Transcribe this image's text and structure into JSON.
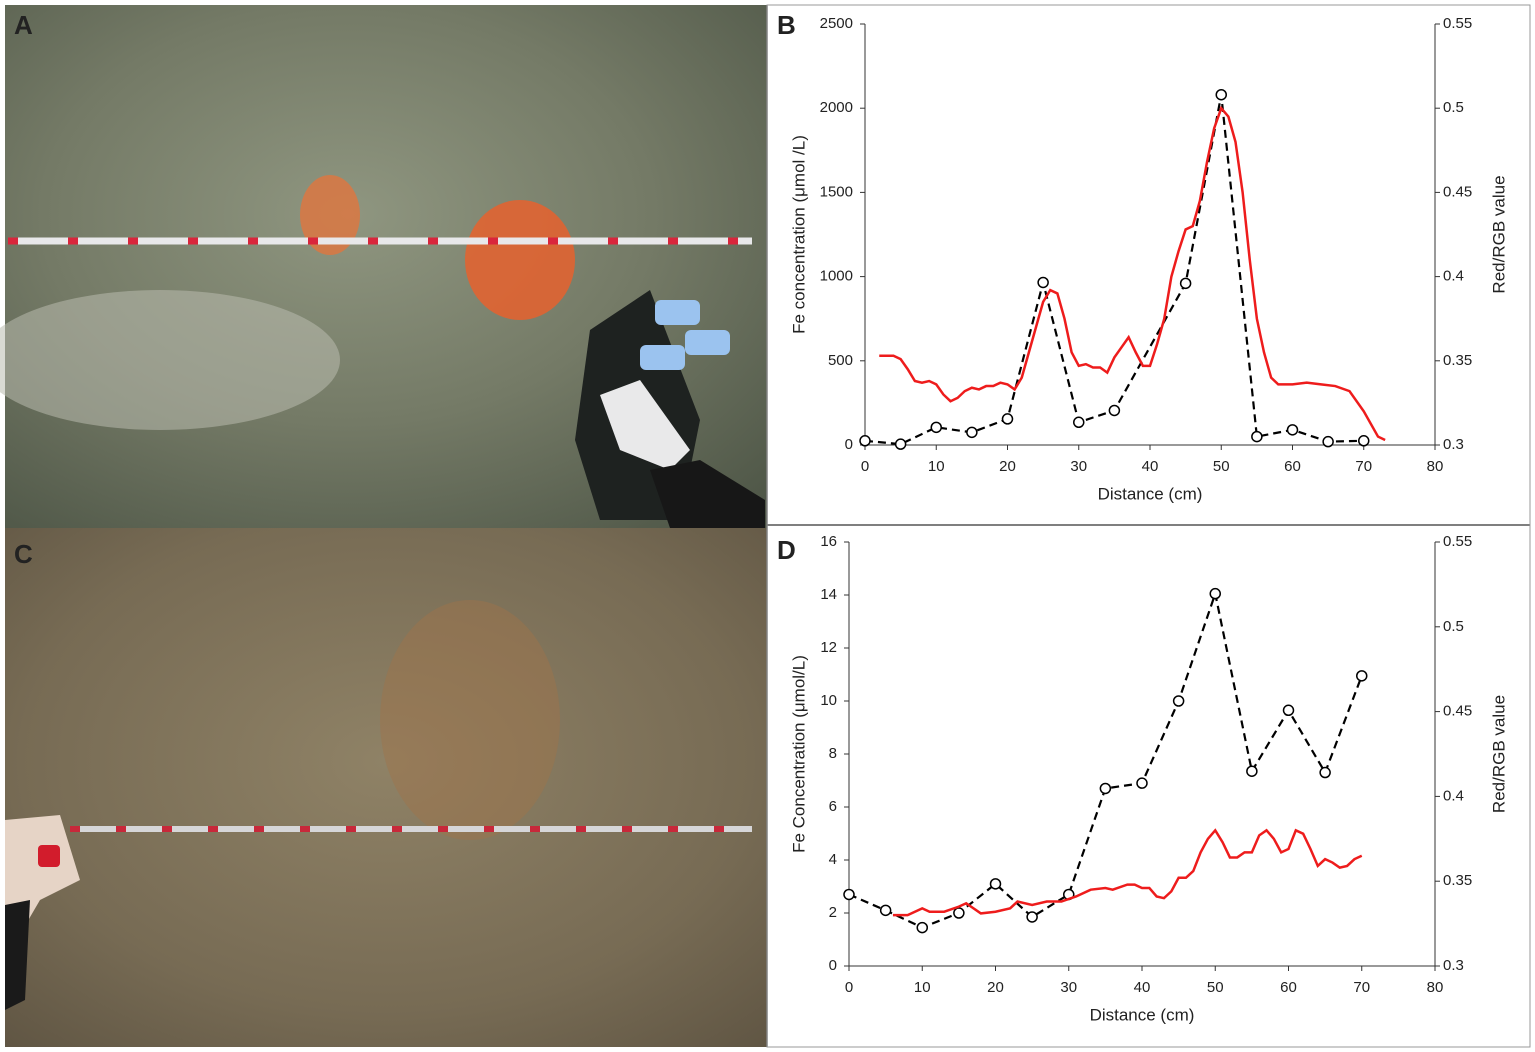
{
  "panels": [
    "A",
    "C"
  ],
  "chart_data": [
    {
      "type": "line",
      "panel_label": "B",
      "xlabel": "Distance (cm)",
      "ylabel": "Fe concentration (μmol /L)",
      "y2label": "Red/RGB value",
      "xlim": [
        0,
        80
      ],
      "xticks": [
        0,
        10,
        20,
        30,
        40,
        50,
        60,
        70,
        80
      ],
      "ylim": [
        0,
        2500
      ],
      "yticks": [
        0,
        500,
        1000,
        1500,
        2000,
        2500
      ],
      "y2lim": [
        0.3,
        0.55
      ],
      "y2ticks": [
        0.3,
        0.35,
        0.4,
        0.45,
        0.5,
        0.55
      ],
      "series": [
        {
          "color": "#000000",
          "dash": true,
          "markers": true,
          "axis": "y",
          "x": [
            0,
            5,
            10,
            15,
            20,
            25,
            30,
            35,
            45,
            50,
            55,
            60,
            65,
            70
          ],
          "values": [
            25,
            5,
            105,
            75,
            155,
            965,
            135,
            205,
            960,
            2080,
            50,
            90,
            20,
            25
          ]
        },
        {
          "color": "#ee1c1c",
          "dash": false,
          "markers": false,
          "axis": "y2",
          "x": [
            2,
            4,
            5,
            6,
            7,
            8,
            9,
            10,
            11,
            12,
            13,
            14,
            15,
            16,
            17,
            18,
            19,
            20,
            21,
            22,
            23,
            24,
            25,
            26,
            27,
            28,
            29,
            30,
            31,
            32,
            33,
            34,
            35,
            36,
            37,
            38,
            39,
            40,
            41,
            42,
            43,
            44,
            45,
            46,
            47,
            48,
            49,
            50,
            51,
            52,
            53,
            54,
            55,
            56,
            57,
            58,
            60,
            62,
            64,
            66,
            68,
            70,
            72,
            73
          ],
          "values": [
            0.353,
            0.353,
            0.351,
            0.345,
            0.338,
            0.337,
            0.338,
            0.336,
            0.33,
            0.326,
            0.328,
            0.332,
            0.334,
            0.333,
            0.335,
            0.335,
            0.337,
            0.336,
            0.333,
            0.34,
            0.355,
            0.37,
            0.385,
            0.392,
            0.39,
            0.375,
            0.355,
            0.347,
            0.348,
            0.346,
            0.346,
            0.343,
            0.352,
            0.358,
            0.364,
            0.355,
            0.347,
            0.347,
            0.36,
            0.375,
            0.4,
            0.415,
            0.428,
            0.43,
            0.445,
            0.468,
            0.488,
            0.5,
            0.495,
            0.48,
            0.45,
            0.41,
            0.375,
            0.355,
            0.34,
            0.336,
            0.336,
            0.337,
            0.336,
            0.335,
            0.332,
            0.32,
            0.305,
            0.303
          ]
        }
      ]
    },
    {
      "type": "line",
      "panel_label": "D",
      "xlabel": "Distance (cm)",
      "ylabel": "Fe Concentration (μmol/L)",
      "y2label": "Red/RGB value",
      "xlim": [
        0,
        80
      ],
      "xticks": [
        0,
        10,
        20,
        30,
        40,
        50,
        60,
        70,
        80
      ],
      "ylim": [
        0,
        16
      ],
      "yticks": [
        0,
        2,
        4,
        6,
        8,
        10,
        12,
        14,
        16
      ],
      "y2lim": [
        0.3,
        0.55
      ],
      "y2ticks": [
        0.3,
        0.35,
        0.4,
        0.45,
        0.5,
        0.55
      ],
      "series": [
        {
          "color": "#000000",
          "dash": true,
          "markers": true,
          "axis": "y",
          "x": [
            0,
            5,
            10,
            15,
            20,
            25,
            30,
            35,
            40,
            45,
            50,
            55,
            60,
            65,
            70
          ],
          "values": [
            2.7,
            2.1,
            1.45,
            2.0,
            3.1,
            1.85,
            2.7,
            6.7,
            6.9,
            10.0,
            14.05,
            7.35,
            9.65,
            7.3,
            10.95
          ]
        },
        {
          "color": "#ee1c1c",
          "dash": false,
          "markers": false,
          "axis": "y2",
          "x": [
            6,
            8,
            10,
            11,
            13,
            15,
            16,
            18,
            20,
            22,
            23,
            25,
            27,
            29,
            31,
            33,
            35,
            36,
            38,
            39,
            40,
            41,
            42,
            43,
            44,
            45,
            46,
            47,
            48,
            49,
            50,
            51,
            52,
            53,
            54,
            55,
            56,
            57,
            58,
            59,
            60,
            61,
            62,
            63,
            64,
            65,
            66,
            67,
            68,
            69,
            70
          ],
          "values": [
            0.33,
            0.33,
            0.334,
            0.332,
            0.332,
            0.335,
            0.337,
            0.331,
            0.332,
            0.334,
            0.338,
            0.336,
            0.338,
            0.338,
            0.341,
            0.345,
            0.346,
            0.345,
            0.348,
            0.348,
            0.346,
            0.346,
            0.341,
            0.34,
            0.344,
            0.352,
            0.352,
            0.356,
            0.367,
            0.375,
            0.38,
            0.373,
            0.364,
            0.364,
            0.367,
            0.367,
            0.377,
            0.38,
            0.375,
            0.367,
            0.369,
            0.38,
            0.378,
            0.369,
            0.359,
            0.363,
            0.361,
            0.358,
            0.359,
            0.363,
            0.365
          ]
        }
      ]
    }
  ]
}
